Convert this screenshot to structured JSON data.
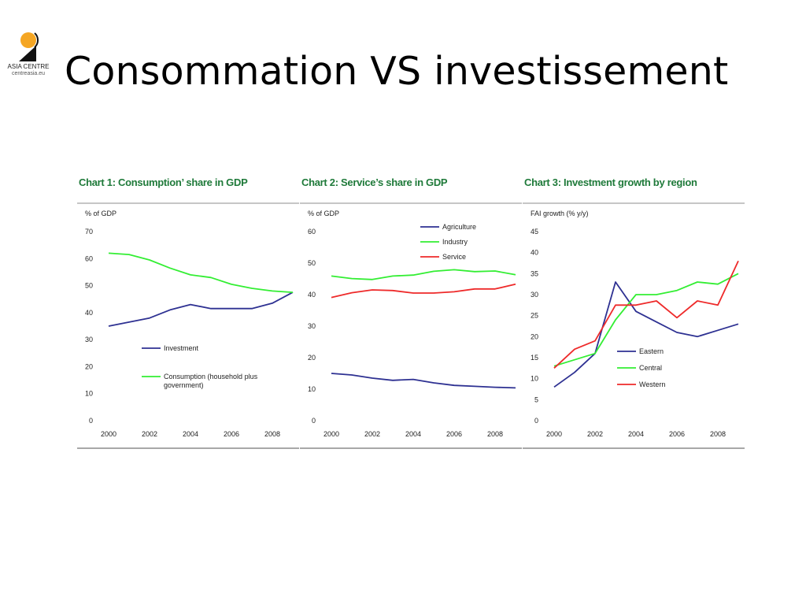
{
  "slide": {
    "title": "Consommation VS investissement",
    "logo": {
      "line1": "ASIA CENTRE",
      "line2": "centreasia.eu",
      "icon": "asia-centre-logo"
    }
  },
  "colors": {
    "accent_title": "#1f7a3a",
    "blue": "#2e3192",
    "green": "#33ee33",
    "red": "#ee2a2a",
    "rule": "#8c8c8c"
  },
  "chart_data": [
    {
      "type": "line",
      "title": "Chart 1: Consumption’ share in GDP",
      "ylabel": "% of GDP",
      "ylim": [
        0,
        70
      ],
      "yticks": [
        0,
        10,
        20,
        30,
        40,
        50,
        60,
        70
      ],
      "xlim": [
        2000,
        2009
      ],
      "xticks": [
        2000,
        2002,
        2004,
        2006,
        2008
      ],
      "x": [
        2000,
        2001,
        2002,
        2003,
        2004,
        2005,
        2006,
        2007,
        2008,
        2009
      ],
      "series": [
        {
          "name": "Investment",
          "color": "#2e3192",
          "values": [
            35,
            36.5,
            38,
            41,
            43,
            41.5,
            41.5,
            41.5,
            43.5,
            47.5
          ]
        },
        {
          "name": "Consumption (household plus government)",
          "name_lines": [
            "Consumption (household plus",
            "government)"
          ],
          "color": "#33ee33",
          "values": [
            62,
            61.5,
            59.5,
            56.5,
            54,
            53,
            50.5,
            49,
            48,
            47.5
          ]
        }
      ],
      "legend": "center-left",
      "grid": false
    },
    {
      "type": "line",
      "title": "Chart 2: Service’s share in GDP",
      "ylabel": "% of GDP",
      "ylim": [
        0,
        60
      ],
      "yticks": [
        0,
        10,
        20,
        30,
        40,
        50,
        60
      ],
      "xlim": [
        2000,
        2009
      ],
      "xticks": [
        2000,
        2002,
        2004,
        2006,
        2008
      ],
      "x": [
        2000,
        2001,
        2002,
        2003,
        2004,
        2005,
        2006,
        2007,
        2008,
        2009
      ],
      "series": [
        {
          "name": "Agriculture",
          "color": "#2e3192",
          "values": [
            15,
            14.5,
            13.5,
            12.8,
            13.1,
            12,
            11.2,
            10.9,
            10.6,
            10.4
          ]
        },
        {
          "name": "Industry",
          "color": "#33ee33",
          "values": [
            45.9,
            45.1,
            44.8,
            45.9,
            46.2,
            47.4,
            47.9,
            47.3,
            47.5,
            46.3
          ]
        },
        {
          "name": "Service",
          "color": "#ee2a2a",
          "values": [
            39.1,
            40.6,
            41.5,
            41.3,
            40.5,
            40.5,
            40.9,
            41.8,
            41.8,
            43.3
          ]
        }
      ],
      "legend": "top-right",
      "grid": false
    },
    {
      "type": "line",
      "title": "Chart 3:  Investment growth by region",
      "ylabel": "FAI growth (% y/y)",
      "ylim": [
        0,
        45
      ],
      "yticks": [
        0,
        5,
        10,
        15,
        20,
        25,
        30,
        35,
        40,
        45
      ],
      "xlim": [
        2000,
        2009
      ],
      "xticks": [
        2000,
        2002,
        2004,
        2006,
        2008
      ],
      "x": [
        2000,
        2001,
        2002,
        2003,
        2004,
        2005,
        2006,
        2007,
        2008,
        2009
      ],
      "series": [
        {
          "name": "Eastern",
          "color": "#2e3192",
          "values": [
            8,
            11.5,
            16,
            33,
            26,
            23.5,
            21,
            20,
            21.5,
            23
          ]
        },
        {
          "name": "Central",
          "color": "#33ee33",
          "values": [
            13,
            14.5,
            16,
            24,
            30,
            30,
            31,
            33,
            32.5,
            35
          ]
        },
        {
          "name": "Western",
          "color": "#ee2a2a",
          "values": [
            12.5,
            17,
            19,
            27.5,
            27.5,
            28.5,
            24.5,
            28.5,
            27.5,
            38
          ]
        }
      ],
      "legend": "center-right",
      "grid": false
    }
  ]
}
